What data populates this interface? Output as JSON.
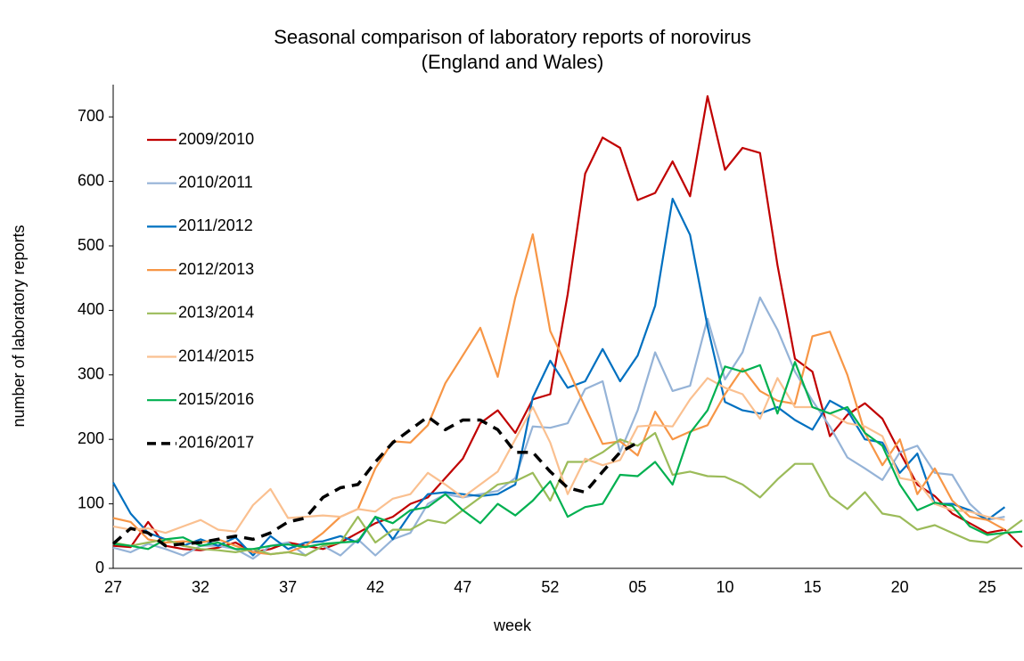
{
  "chart_data": {
    "type": "line",
    "title": "Seasonal comparison of laboratory reports of norovirus (England and Wales)",
    "x_label": "week",
    "y_label": "number of laboratory reports",
    "categories": [
      "27",
      null,
      null,
      null,
      null,
      "32",
      null,
      null,
      null,
      null,
      "37",
      null,
      null,
      null,
      null,
      "42",
      null,
      null,
      null,
      null,
      "47",
      null,
      null,
      null,
      null,
      "52",
      null,
      null,
      null,
      null,
      "05",
      null,
      null,
      null,
      null,
      "10",
      null,
      null,
      null,
      null,
      "15",
      null,
      null,
      null,
      null,
      "20",
      null,
      null,
      null,
      null,
      "25",
      null,
      null
    ],
    "ylim": [
      0,
      750
    ],
    "yticks": [
      0,
      100,
      200,
      300,
      400,
      500,
      600,
      700
    ],
    "legend": "upper left",
    "series": [
      {
        "name": "2009/2010",
        "color": "#c00000",
        "values": [
          35,
          33,
          72,
          35,
          30,
          28,
          32,
          40,
          25,
          30,
          40,
          35,
          30,
          40,
          55,
          70,
          80,
          100,
          110,
          140,
          170,
          225,
          245,
          210,
          262,
          270,
          425,
          612,
          668,
          652,
          571,
          582,
          631,
          577,
          732,
          618,
          652,
          644,
          470,
          325,
          305,
          205,
          238,
          256,
          232,
          180,
          130,
          112,
          85,
          70,
          55,
          60,
          33
        ]
      },
      {
        "name": "2010/2011",
        "color": "#95b3d7",
        "values": [
          32,
          25,
          38,
          30,
          20,
          35,
          35,
          30,
          15,
          35,
          40,
          20,
          35,
          20,
          45,
          20,
          45,
          55,
          100,
          115,
          110,
          115,
          120,
          140,
          220,
          218,
          225,
          278,
          290,
          180,
          245,
          335,
          275,
          283,
          387,
          293,
          335,
          420,
          370,
          305,
          260,
          220,
          172,
          155,
          137,
          180,
          190,
          148,
          145,
          100,
          75,
          80,
          null
        ]
      },
      {
        "name": "2011/2012",
        "color": "#0070c0",
        "values": [
          133,
          85,
          55,
          45,
          35,
          45,
          35,
          48,
          20,
          50,
          30,
          40,
          42,
          50,
          40,
          80,
          45,
          85,
          115,
          118,
          115,
          112,
          115,
          130,
          265,
          322,
          280,
          290,
          340,
          290,
          330,
          407,
          573,
          517,
          375,
          258,
          245,
          240,
          250,
          230,
          215,
          260,
          245,
          200,
          195,
          148,
          178,
          100,
          100,
          90,
          75,
          95,
          null
        ]
      },
      {
        "name": "2012/2013",
        "color": "#f79646",
        "values": [
          78,
          72,
          45,
          40,
          42,
          40,
          45,
          35,
          25,
          22,
          25,
          35,
          55,
          80,
          92,
          155,
          197,
          195,
          222,
          287,
          330,
          373,
          297,
          420,
          518,
          368,
          310,
          250,
          193,
          197,
          175,
          243,
          200,
          212,
          222,
          270,
          310,
          275,
          260,
          255,
          360,
          367,
          300,
          210,
          160,
          200,
          115,
          155,
          105,
          80,
          75,
          60,
          null
        ]
      },
      {
        "name": "2013/2014",
        "color": "#9bbb59",
        "values": [
          40,
          35,
          40,
          45,
          35,
          30,
          28,
          25,
          30,
          22,
          25,
          20,
          35,
          40,
          80,
          40,
          60,
          60,
          75,
          70,
          90,
          110,
          130,
          135,
          148,
          105,
          165,
          165,
          180,
          200,
          190,
          210,
          145,
          150,
          143,
          142,
          130,
          110,
          138,
          162,
          162,
          112,
          92,
          118,
          85,
          80,
          60,
          67,
          55,
          43,
          40,
          55,
          75
        ]
      },
      {
        "name": "2014/2015",
        "color": "#fac090",
        "values": [
          65,
          60,
          62,
          55,
          65,
          75,
          60,
          57,
          98,
          123,
          78,
          80,
          82,
          80,
          92,
          88,
          108,
          115,
          148,
          130,
          110,
          130,
          150,
          200,
          250,
          195,
          115,
          170,
          160,
          168,
          220,
          222,
          220,
          262,
          295,
          280,
          270,
          232,
          295,
          250,
          250,
          240,
          225,
          220,
          205,
          140,
          135,
          100,
          90,
          88,
          80,
          75,
          null
        ]
      },
      {
        "name": "2015/2016",
        "color": "#00b050",
        "values": [
          38,
          35,
          30,
          45,
          48,
          35,
          40,
          30,
          30,
          35,
          37,
          33,
          38,
          40,
          42,
          80,
          70,
          90,
          95,
          115,
          90,
          70,
          100,
          82,
          105,
          135,
          80,
          95,
          100,
          145,
          143,
          165,
          130,
          210,
          245,
          313,
          305,
          315,
          240,
          320,
          250,
          240,
          250,
          210,
          190,
          130,
          90,
          102,
          97,
          65,
          52,
          55,
          57
        ]
      },
      {
        "name": "2016/2017",
        "color": "#000000",
        "dashed": true,
        "values": [
          38,
          62,
          55,
          35,
          38,
          40,
          45,
          50,
          45,
          55,
          72,
          78,
          110,
          125,
          130,
          165,
          195,
          215,
          235,
          215,
          230,
          230,
          215,
          180,
          180,
          150,
          125,
          118,
          150,
          180,
          195,
          null,
          null,
          null,
          null,
          null,
          null,
          null,
          null,
          null,
          null,
          null,
          null,
          null,
          null,
          null,
          null,
          null,
          null,
          null,
          null,
          null,
          null
        ]
      }
    ]
  }
}
